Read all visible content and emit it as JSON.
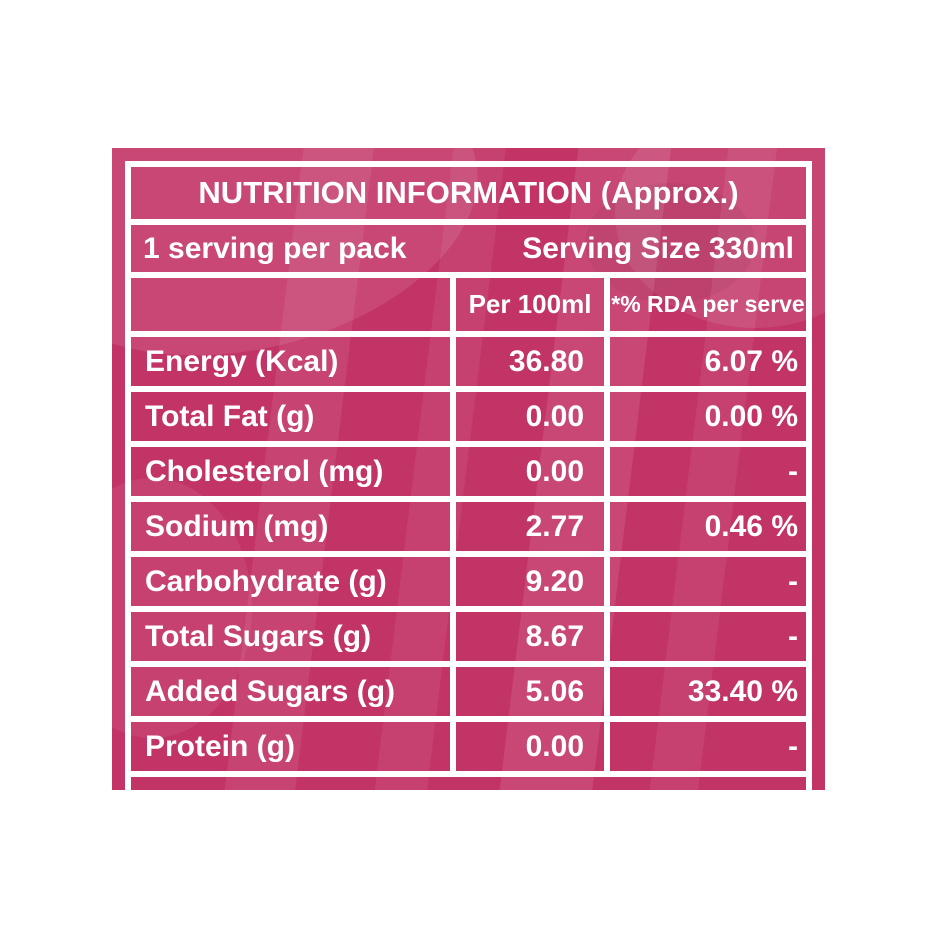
{
  "label": {
    "title": "NUTRITION INFORMATION (Approx.)",
    "serving": {
      "left": "1 serving per pack",
      "right": "Serving Size 330ml"
    },
    "columns": {
      "nutrient": "",
      "per_100ml": "Per 100ml",
      "rda_per_serve": "*% RDA per serve"
    },
    "rows": [
      {
        "name": "Energy (Kcal)",
        "per_100ml": "36.80",
        "rda": "6.07 %"
      },
      {
        "name": "Total Fat (g)",
        "per_100ml": "0.00",
        "rda": "0.00 %"
      },
      {
        "name": "Cholesterol (mg)",
        "per_100ml": "0.00",
        "rda": "-"
      },
      {
        "name": "Sodium (mg)",
        "per_100ml": "2.77",
        "rda": "0.46 %"
      },
      {
        "name": "Carbohydrate (g)",
        "per_100ml": "9.20",
        "rda": "-"
      },
      {
        "name": "Total Sugars (g)",
        "per_100ml": "8.67",
        "rda": "-"
      },
      {
        "name": "Added Sugars (g)",
        "per_100ml": "5.06",
        "rda": "33.40 %"
      },
      {
        "name": "Protein (g)",
        "per_100ml": "0.00",
        "rda": "-"
      }
    ],
    "colors": {
      "page_background": "#ffffff",
      "panel": "#c23366",
      "panel_highlight": "#d04a7c",
      "grid_lines": "#ffffff",
      "text": "#ffffff"
    }
  }
}
